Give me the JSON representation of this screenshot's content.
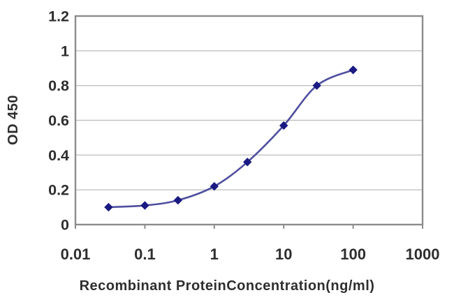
{
  "figure": {
    "y_axis_title": "OD 450",
    "x_axis_title": "Recombinant ProteinConcentration(ng/ml)"
  },
  "chart_data": {
    "type": "line",
    "title": "",
    "xlabel": "Recombinant ProteinConcentration(ng/ml)",
    "ylabel": "OD 450",
    "x_scale": "log",
    "xlim": [
      0.01,
      1000
    ],
    "ylim": [
      0,
      1.2
    ],
    "x": [
      0.03,
      0.1,
      0.3,
      1,
      3,
      10,
      30,
      100
    ],
    "y": [
      0.1,
      0.11,
      0.14,
      0.22,
      0.36,
      0.57,
      0.8,
      0.89
    ],
    "x_ticks": [
      "0.01",
      "0.1",
      "1",
      "10",
      "100",
      "1000"
    ],
    "y_ticks": [
      "0",
      "0.2",
      "0.4",
      "0.6",
      "0.8",
      "1",
      "1.2"
    ],
    "grid": "horizontal",
    "legend": "none",
    "marker": "diamond",
    "colors": {
      "marker": "#1a1a82",
      "line": "#4f4f9f",
      "gridline": "#c2c2c2",
      "axis_border": "#8c8c8c",
      "tick_text": "#2e2e2e"
    }
  }
}
